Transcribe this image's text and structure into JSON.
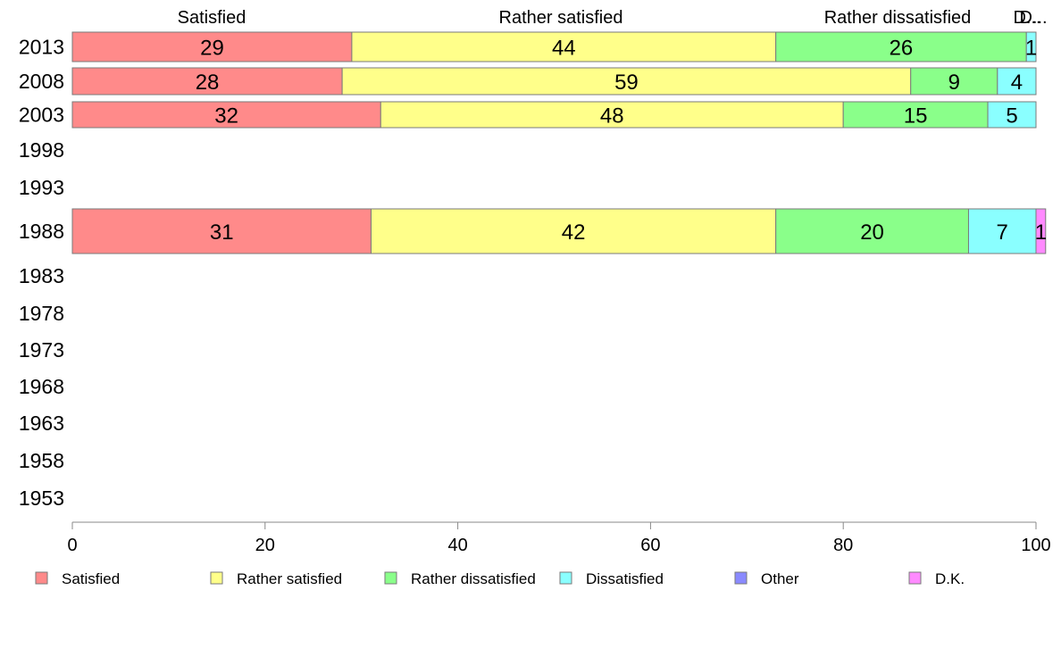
{
  "chart_data": {
    "type": "bar",
    "orientation": "horizontal",
    "stacked": true,
    "categories": [
      "2013",
      "2008",
      "2003",
      "1998",
      "1993",
      "1988",
      "1983",
      "1978",
      "1973",
      "1968",
      "1963",
      "1958",
      "1953"
    ],
    "series": [
      {
        "name": "Satisfied",
        "color": "#ff8a8a",
        "values": [
          29,
          28,
          32,
          null,
          null,
          31,
          null,
          null,
          null,
          null,
          null,
          null,
          null
        ]
      },
      {
        "name": "Rather satisfied",
        "color": "#ffff8a",
        "values": [
          44,
          59,
          48,
          null,
          null,
          42,
          null,
          null,
          null,
          null,
          null,
          null,
          null
        ]
      },
      {
        "name": "Rather dissatisfied",
        "color": "#8aff8a",
        "values": [
          26,
          9,
          15,
          null,
          null,
          20,
          null,
          null,
          null,
          null,
          null,
          null,
          null
        ]
      },
      {
        "name": "Dissatisfied",
        "color": "#8affff",
        "values": [
          1,
          4,
          5,
          null,
          null,
          7,
          null,
          null,
          null,
          null,
          null,
          null,
          null
        ]
      },
      {
        "name": "Other",
        "color": "#8a8aff",
        "values": [
          null,
          null,
          null,
          null,
          null,
          null,
          null,
          null,
          null,
          null,
          null,
          null,
          null
        ]
      },
      {
        "name": "D.K.",
        "color": "#ff8aff",
        "values": [
          null,
          null,
          null,
          null,
          null,
          1,
          null,
          null,
          null,
          null,
          null,
          null,
          null
        ]
      }
    ],
    "top_labels": [
      "Satisfied",
      "Rather satisfied",
      "Rather dissatisfied",
      "D...",
      "D..."
    ],
    "xlim": [
      0,
      100
    ],
    "x_ticks": [
      0,
      20,
      40,
      60,
      80,
      100
    ],
    "legend_position": "bottom",
    "grid": false
  }
}
